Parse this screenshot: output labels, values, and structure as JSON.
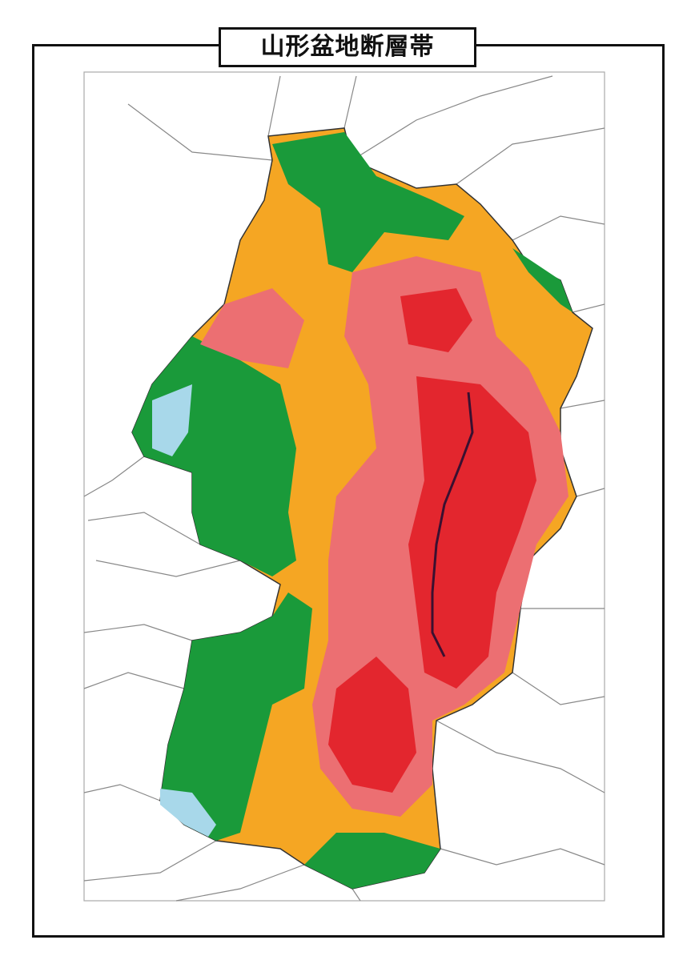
{
  "title": "山形盆地断層帯"
}
